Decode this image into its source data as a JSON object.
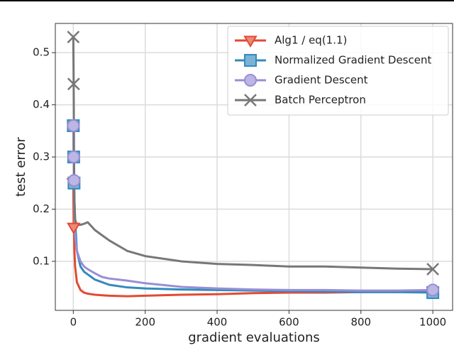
{
  "chart_data": {
    "type": "line",
    "x_label": "gradient evaluations",
    "y_label": "test error",
    "x": [
      0,
      1,
      2,
      3,
      5,
      10,
      20,
      30,
      40,
      60,
      80,
      100,
      150,
      200,
      300,
      400,
      500,
      600,
      700,
      800,
      900,
      1000
    ],
    "series": [
      {
        "name": "Alg1 / eq(1.1)",
        "color": "#e24a33",
        "marker": "triangle-down",
        "markevery": [
          0,
          1
        ],
        "values": [
          0.25,
          0.165,
          0.16,
          0.12,
          0.09,
          0.06,
          0.045,
          0.04,
          0.038,
          0.036,
          0.035,
          0.034,
          0.033,
          0.034,
          0.036,
          0.037,
          0.039,
          0.04,
          0.04,
          0.041,
          0.041,
          0.042
        ]
      },
      {
        "name": "Normalized Gradient Descent",
        "color": "#348abd",
        "marker": "square",
        "markevery": [
          0,
          1,
          2,
          21
        ],
        "values": [
          0.36,
          0.3,
          0.25,
          0.22,
          0.18,
          0.12,
          0.09,
          0.08,
          0.075,
          0.065,
          0.06,
          0.055,
          0.05,
          0.048,
          0.046,
          0.045,
          0.044,
          0.043,
          0.042,
          0.041,
          0.041,
          0.04
        ]
      },
      {
        "name": "Gradient Descent",
        "color": "#988ed5",
        "marker": "circle",
        "markevery": [
          0,
          1,
          2,
          21
        ],
        "values": [
          0.36,
          0.3,
          0.255,
          0.2,
          0.15,
          0.12,
          0.1,
          0.09,
          0.085,
          0.077,
          0.07,
          0.067,
          0.063,
          0.058,
          0.051,
          0.048,
          0.046,
          0.045,
          0.045,
          0.044,
          0.044,
          0.045
        ]
      },
      {
        "name": "Batch Perceptron",
        "color": "#777777",
        "marker": "x",
        "markevery": [
          0,
          1,
          21
        ],
        "values": [
          0.53,
          0.44,
          0.3,
          0.22,
          0.18,
          0.17,
          0.17,
          0.172,
          0.175,
          0.16,
          0.15,
          0.14,
          0.12,
          0.11,
          0.1,
          0.095,
          0.093,
          0.09,
          0.09,
          0.088,
          0.086,
          0.085
        ]
      }
    ],
    "xlim": [
      -50,
      1055
    ],
    "xticks": [
      0,
      200,
      400,
      600,
      800,
      1000
    ],
    "ylim": [
      0.006,
      0.556
    ],
    "yticks": [
      0.1,
      0.2,
      0.3,
      0.4,
      0.5
    ],
    "grid": true,
    "legend": "upper right"
  }
}
